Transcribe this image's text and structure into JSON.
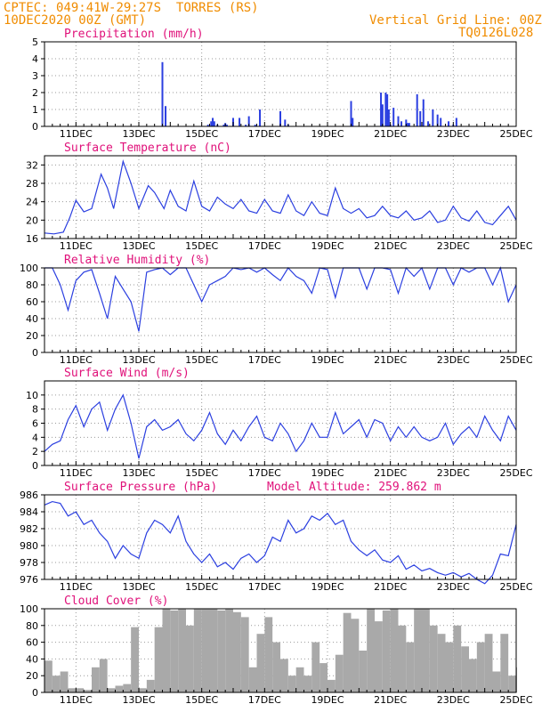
{
  "header": {
    "source": "CPTEC:",
    "coords": "049:41W-29:27S",
    "station": "TORRES (RS)",
    "datetime": "10DEC2020 00Z (GMT)",
    "grid_note": "Vertical Grid Line: 00Z",
    "code": "TQ0126L028"
  },
  "colors": {
    "header": "#f08c00",
    "title": "#e0117a",
    "line": "#2b3fe0",
    "bar": "#2b3fe0",
    "cloud": "#a9a9a9",
    "grid": "#9a9a9a"
  },
  "x_axis": {
    "start_day": 10,
    "end_day": 25,
    "tick_labels": [
      "11DEC",
      "13DEC",
      "15DEC",
      "17DEC",
      "19DEC",
      "21DEC",
      "23DEC",
      "25DEC"
    ],
    "tick_days": [
      11,
      13,
      15,
      17,
      19,
      21,
      23,
      25
    ]
  },
  "chart_data": [
    {
      "id": "precip",
      "type": "bar",
      "title": "Precipitation (mm/h)",
      "ylim": [
        0,
        5
      ],
      "yticks": [
        0,
        1,
        2,
        3,
        4,
        5
      ],
      "x_unit": "day of Dec 2020",
      "x": [
        13.75,
        13.85,
        15.2,
        15.3,
        15.35,
        15.4,
        15.5,
        15.7,
        15.75,
        15.8,
        16.0,
        16.2,
        16.4,
        16.5,
        16.7,
        16.85,
        17.5,
        17.65,
        17.75,
        19.75,
        19.8,
        20.7,
        20.75,
        20.85,
        20.9,
        20.95,
        21.0,
        21.1,
        21.25,
        21.35,
        21.5,
        21.55,
        21.6,
        21.85,
        21.95,
        22.05,
        22.2,
        22.35,
        22.5,
        22.6,
        22.85,
        23.0,
        23.1
      ],
      "values": [
        3.8,
        1.2,
        0.1,
        0.3,
        0.5,
        0.3,
        0.1,
        0.1,
        0.2,
        0.1,
        0.5,
        0.5,
        0.1,
        0.6,
        0.1,
        1.0,
        0.9,
        0.4,
        0.1,
        1.5,
        0.5,
        2.0,
        1.3,
        2.0,
        1.9,
        1.0,
        0.1,
        1.1,
        0.6,
        0.3,
        0.4,
        0.2,
        0.2,
        1.9,
        0.9,
        1.6,
        0.3,
        1.0,
        0.7,
        0.5,
        0.3,
        0.1,
        0.5
      ],
      "grid": true
    },
    {
      "id": "temp",
      "type": "line",
      "title": "Surface Temperature (nC)",
      "ylim": [
        16,
        34
      ],
      "yticks": [
        16,
        20,
        24,
        28,
        32
      ],
      "x": [
        10.0,
        10.3,
        10.6,
        10.8,
        11.0,
        11.25,
        11.5,
        11.8,
        12.0,
        12.2,
        12.5,
        12.75,
        13.0,
        13.3,
        13.5,
        13.8,
        14.0,
        14.25,
        14.5,
        14.75,
        15.0,
        15.25,
        15.5,
        15.75,
        16.0,
        16.25,
        16.5,
        16.75,
        17.0,
        17.25,
        17.5,
        17.75,
        18.0,
        18.25,
        18.5,
        18.75,
        19.0,
        19.25,
        19.5,
        19.75,
        20.0,
        20.25,
        20.5,
        20.75,
        21.0,
        21.25,
        21.5,
        21.75,
        22.0,
        22.25,
        22.5,
        22.75,
        23.0,
        23.25,
        23.5,
        23.75,
        24.0,
        24.25,
        24.5,
        24.75,
        25.0
      ],
      "values": [
        17.2,
        17.0,
        17.4,
        20.5,
        24.3,
        21.8,
        22.5,
        30.0,
        27.0,
        22.5,
        32.8,
        28.0,
        22.5,
        27.5,
        26.0,
        22.5,
        26.5,
        23.0,
        22.0,
        28.5,
        23.0,
        22.0,
        25.0,
        23.5,
        22.5,
        24.5,
        22.0,
        21.5,
        24.5,
        22.0,
        21.5,
        25.5,
        22.0,
        21.0,
        24.0,
        21.5,
        21.0,
        27.0,
        22.5,
        21.5,
        22.5,
        20.5,
        21.0,
        23.0,
        21.0,
        20.5,
        22.0,
        20.0,
        20.5,
        22.0,
        19.5,
        20.0,
        23.0,
        20.5,
        19.8,
        22.0,
        19.5,
        19.0,
        21.0,
        23.0,
        20.0
      ],
      "grid": true
    },
    {
      "id": "rh",
      "type": "line",
      "title": "Relative Humidity (%)",
      "ylim": [
        0,
        100
      ],
      "yticks": [
        0,
        20,
        40,
        60,
        80,
        100
      ],
      "x": [
        10.0,
        10.25,
        10.5,
        10.75,
        11.0,
        11.25,
        11.5,
        11.75,
        12.0,
        12.25,
        12.5,
        12.75,
        13.0,
        13.25,
        13.5,
        13.75,
        14.0,
        14.25,
        14.5,
        14.75,
        15.0,
        15.25,
        15.5,
        15.75,
        16.0,
        16.25,
        16.5,
        16.75,
        17.0,
        17.25,
        17.5,
        17.75,
        18.0,
        18.25,
        18.5,
        18.75,
        19.0,
        19.25,
        19.5,
        19.75,
        20.0,
        20.25,
        20.5,
        20.75,
        21.0,
        21.25,
        21.5,
        21.75,
        22.0,
        22.25,
        22.5,
        22.75,
        23.0,
        23.25,
        23.5,
        23.75,
        24.0,
        24.25,
        24.5,
        24.75,
        25.0
      ],
      "values": [
        100,
        100,
        80,
        50,
        85,
        95,
        98,
        70,
        40,
        90,
        75,
        60,
        25,
        95,
        98,
        100,
        92,
        100,
        100,
        80,
        60,
        80,
        85,
        90,
        100,
        98,
        100,
        95,
        100,
        92,
        85,
        100,
        90,
        85,
        70,
        100,
        98,
        65,
        100,
        100,
        100,
        75,
        100,
        100,
        98,
        70,
        100,
        90,
        100,
        75,
        100,
        100,
        80,
        100,
        95,
        100,
        100,
        80,
        100,
        60,
        80
      ],
      "grid": true
    },
    {
      "id": "wind",
      "type": "line",
      "title": "Surface Wind (m/s)",
      "ylim": [
        0,
        12
      ],
      "yticks": [
        0,
        2,
        4,
        6,
        8,
        10
      ],
      "x": [
        10.0,
        10.25,
        10.5,
        10.75,
        11.0,
        11.25,
        11.5,
        11.75,
        12.0,
        12.25,
        12.5,
        12.75,
        13.0,
        13.25,
        13.5,
        13.75,
        14.0,
        14.25,
        14.5,
        14.75,
        15.0,
        15.25,
        15.5,
        15.75,
        16.0,
        16.25,
        16.5,
        16.75,
        17.0,
        17.25,
        17.5,
        17.75,
        18.0,
        18.25,
        18.5,
        18.75,
        19.0,
        19.25,
        19.5,
        19.75,
        20.0,
        20.25,
        20.5,
        20.75,
        21.0,
        21.25,
        21.5,
        21.75,
        22.0,
        22.25,
        22.5,
        22.75,
        23.0,
        23.25,
        23.5,
        23.75,
        24.0,
        24.25,
        24.5,
        24.75,
        25.0
      ],
      "values": [
        2.0,
        3.0,
        3.5,
        6.5,
        8.5,
        5.5,
        8.0,
        9.0,
        5.0,
        8.0,
        10.0,
        6.0,
        1.0,
        5.5,
        6.5,
        5.0,
        5.5,
        6.5,
        4.5,
        3.5,
        5.0,
        7.5,
        4.5,
        3.0,
        5.0,
        3.5,
        5.5,
        7.0,
        4.0,
        3.5,
        6.0,
        4.5,
        2.0,
        3.5,
        6.0,
        4.0,
        4.0,
        7.5,
        4.5,
        5.5,
        6.5,
        4.0,
        6.5,
        6.0,
        3.5,
        5.5,
        4.0,
        5.5,
        4.0,
        3.5,
        4.0,
        6.0,
        3.0,
        4.5,
        5.5,
        4.0,
        7.0,
        5.0,
        3.5,
        7.0,
        5.0
      ],
      "grid": true
    },
    {
      "id": "pressure",
      "type": "line",
      "title": "Surface Pressure (hPa)",
      "subtitle": "Model Altitude: 259.862 m",
      "ylim": [
        976,
        986
      ],
      "yticks": [
        976,
        978,
        980,
        982,
        984,
        986
      ],
      "x": [
        10.0,
        10.25,
        10.5,
        10.75,
        11.0,
        11.25,
        11.5,
        11.75,
        12.0,
        12.25,
        12.5,
        12.75,
        13.0,
        13.25,
        13.5,
        13.75,
        14.0,
        14.25,
        14.5,
        14.75,
        15.0,
        15.25,
        15.5,
        15.75,
        16.0,
        16.25,
        16.5,
        16.75,
        17.0,
        17.25,
        17.5,
        17.75,
        18.0,
        18.25,
        18.5,
        18.75,
        19.0,
        19.25,
        19.5,
        19.75,
        20.0,
        20.25,
        20.5,
        20.75,
        21.0,
        21.25,
        21.5,
        21.75,
        22.0,
        22.25,
        22.5,
        22.75,
        23.0,
        23.25,
        23.5,
        23.75,
        24.0,
        24.25,
        24.5,
        24.75,
        25.0
      ],
      "values": [
        984.8,
        985.2,
        985.0,
        983.5,
        984.0,
        982.5,
        983.0,
        981.5,
        980.5,
        978.5,
        980.0,
        979.0,
        978.5,
        981.5,
        983.0,
        982.5,
        981.5,
        983.5,
        980.5,
        979.0,
        978.0,
        979.0,
        977.5,
        978.0,
        977.2,
        978.5,
        979.0,
        978.0,
        978.8,
        981.0,
        980.5,
        983.0,
        981.5,
        982.0,
        983.5,
        983.0,
        983.8,
        982.5,
        983.0,
        980.5,
        979.5,
        978.8,
        979.5,
        978.3,
        978.0,
        978.8,
        977.2,
        977.7,
        977.0,
        977.3,
        976.8,
        976.5,
        976.8,
        976.3,
        976.7,
        976.0,
        975.5,
        976.5,
        979.0,
        978.8,
        982.5
      ],
      "grid": true
    },
    {
      "id": "cloud",
      "type": "area",
      "title": "Cloud Cover (%)",
      "ylim": [
        0,
        100
      ],
      "yticks": [
        0,
        20,
        40,
        60,
        80,
        100
      ],
      "x": [
        10.0,
        10.25,
        10.5,
        10.75,
        11.0,
        11.25,
        11.5,
        11.75,
        12.0,
        12.25,
        12.5,
        12.75,
        13.0,
        13.25,
        13.5,
        13.75,
        14.0,
        14.25,
        14.5,
        14.75,
        15.0,
        15.25,
        15.5,
        15.75,
        16.0,
        16.25,
        16.5,
        16.75,
        17.0,
        17.25,
        17.5,
        17.75,
        18.0,
        18.25,
        18.5,
        18.75,
        19.0,
        19.25,
        19.5,
        19.75,
        20.0,
        20.25,
        20.5,
        20.75,
        21.0,
        21.25,
        21.5,
        21.75,
        22.0,
        22.25,
        22.5,
        22.75,
        23.0,
        23.25,
        23.5,
        23.75,
        24.0,
        24.25,
        24.5,
        24.75,
        25.0
      ],
      "values": [
        38,
        20,
        25,
        5,
        5,
        3,
        30,
        40,
        5,
        8,
        10,
        78,
        5,
        15,
        78,
        100,
        98,
        100,
        80,
        100,
        100,
        100,
        98,
        100,
        96,
        90,
        30,
        70,
        90,
        60,
        40,
        20,
        30,
        20,
        60,
        35,
        15,
        45,
        95,
        88,
        50,
        100,
        85,
        98,
        100,
        80,
        60,
        100,
        100,
        80,
        70,
        60,
        80,
        55,
        40,
        60,
        70,
        25,
        70,
        20,
        30
      ],
      "grid": true
    }
  ]
}
